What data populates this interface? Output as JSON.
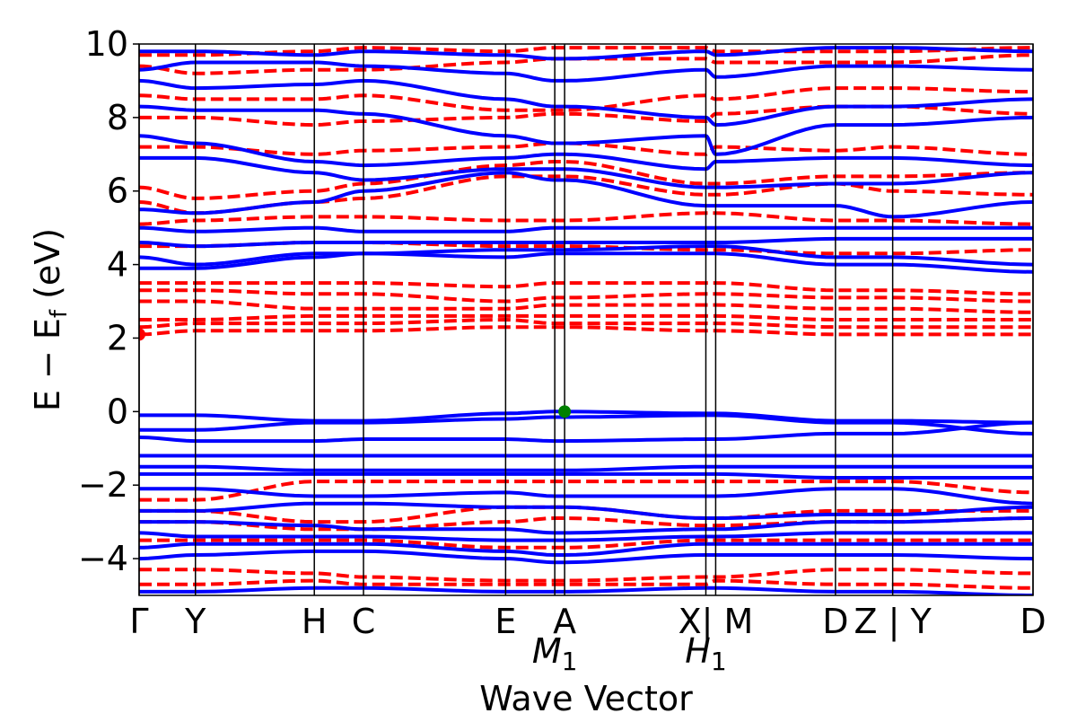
{
  "chart_data": {
    "type": "line",
    "title": "",
    "xlabel": "Wave Vector",
    "ylabel": "E − E_f (eV)",
    "ylabel_main": "E − E",
    "ylabel_sub": "f",
    "ylabel_unit": " (eV)",
    "ylim": [
      -5,
      10
    ],
    "yticks": [
      -4,
      -2,
      0,
      2,
      4,
      6,
      8,
      10
    ],
    "ytick_labels": [
      "−4",
      "−2",
      "0",
      "2",
      "4",
      "6",
      "8",
      "10"
    ],
    "xlim": [
      0,
      1
    ],
    "kpoints": [
      {
        "label": "Γ",
        "x": 0.0
      },
      {
        "label": "Y",
        "x": 0.063
      },
      {
        "label": "H",
        "x": 0.196
      },
      {
        "label": "C",
        "x": 0.251
      },
      {
        "label": "E",
        "x": 0.41
      },
      {
        "label": "M",
        "sub": "1",
        "italic": true,
        "x": 0.465
      },
      {
        "label": "A",
        "x": 0.476
      },
      {
        "label": "H",
        "sub": "1",
        "italic": true,
        "x": 0.634
      },
      {
        "label": "X| M",
        "x": 0.645
      },
      {
        "label": "D",
        "x": 0.779
      },
      {
        "label": "Z | Y",
        "x": 0.843
      },
      {
        "label": "D",
        "x": 1.0
      }
    ],
    "series": [
      {
        "spin": "up",
        "color": "#0000ff",
        "style": "solid",
        "bands": [
          [
            -0.1,
            -0.1,
            -0.25,
            -0.25,
            -0.05,
            0,
            0,
            -0.05,
            -0.05,
            -0.25,
            -0.25,
            -0.3
          ],
          [
            -0.5,
            -0.5,
            -0.3,
            -0.3,
            -0.2,
            -0.15,
            -0.15,
            -0.1,
            -0.1,
            -0.3,
            -0.3,
            -0.6
          ],
          [
            -0.7,
            -0.8,
            -0.8,
            -0.75,
            -0.75,
            -0.8,
            -0.8,
            -0.75,
            -0.75,
            -0.6,
            -0.6,
            -0.3
          ],
          [
            -1.2,
            -1.2,
            -1.2,
            -1.2,
            -1.2,
            -1.2,
            -1.2,
            -1.2,
            -1.2,
            -1.2,
            -1.2,
            -1.2
          ],
          [
            -1.5,
            -1.5,
            -1.6,
            -1.6,
            -1.6,
            -1.6,
            -1.6,
            -1.5,
            -1.5,
            -1.5,
            -1.5,
            -1.5
          ],
          [
            -1.7,
            -1.7,
            -1.7,
            -1.7,
            -1.7,
            -1.7,
            -1.7,
            -1.7,
            -1.7,
            -1.8,
            -1.8,
            -1.8
          ],
          [
            -2.1,
            -2.1,
            -2.3,
            -2.3,
            -2.2,
            -2.3,
            -2.3,
            -2.3,
            -2.3,
            -2.1,
            -2.1,
            -2.5
          ],
          [
            -2.7,
            -2.7,
            -2.5,
            -2.5,
            -2.6,
            -2.6,
            -2.6,
            -2.9,
            -2.9,
            -2.8,
            -2.8,
            -2.6
          ],
          [
            -3.0,
            -3.0,
            -3.1,
            -3.2,
            -3.2,
            -3.3,
            -3.3,
            -3.2,
            -3.2,
            -3.0,
            -3.0,
            -2.9
          ],
          [
            -3.3,
            -3.4,
            -3.4,
            -3.4,
            -3.5,
            -3.5,
            -3.5,
            -3.4,
            -3.4,
            -3.3,
            -3.3,
            -3.3
          ],
          [
            -3.7,
            -3.6,
            -3.6,
            -3.6,
            -3.8,
            -3.9,
            -3.9,
            -3.6,
            -3.6,
            -3.6,
            -3.6,
            -3.6
          ],
          [
            -4.0,
            -3.9,
            -3.8,
            -3.8,
            -4.0,
            -4.1,
            -4.1,
            -3.9,
            -3.9,
            -3.9,
            -3.9,
            -4.0
          ],
          [
            -4.9,
            -4.9,
            -4.8,
            -4.8,
            -4.9,
            -4.9,
            -4.9,
            -4.8,
            -4.8,
            -4.9,
            -4.9,
            -5.0
          ],
          [
            3.9,
            3.9,
            4.2,
            4.3,
            4.2,
            4.3,
            4.3,
            4.3,
            4.3,
            4.0,
            4.0,
            3.8
          ],
          [
            4.2,
            4.0,
            4.3,
            4.3,
            4.4,
            4.4,
            4.4,
            4.5,
            4.5,
            4.2,
            4.2,
            4.0
          ],
          [
            4.6,
            4.5,
            4.6,
            4.6,
            4.6,
            4.6,
            4.6,
            4.6,
            4.6,
            4.7,
            4.7,
            4.7
          ],
          [
            5.0,
            4.9,
            5.0,
            4.9,
            4.9,
            5.0,
            5.0,
            5.0,
            5.0,
            5.0,
            5.0,
            5.0
          ],
          [
            5.5,
            5.4,
            5.7,
            6.0,
            6.5,
            6.3,
            6.3,
            5.6,
            5.6,
            5.6,
            5.3,
            5.7
          ],
          [
            6.9,
            6.9,
            6.5,
            6.3,
            6.6,
            6.6,
            6.6,
            6.1,
            6.1,
            6.2,
            6.2,
            6.5
          ],
          [
            7.5,
            7.3,
            6.8,
            6.7,
            6.9,
            7.0,
            7.0,
            6.6,
            6.8,
            6.9,
            6.9,
            6.7
          ],
          [
            8.3,
            8.2,
            8.2,
            8.1,
            7.5,
            7.3,
            7.3,
            7.5,
            7.0,
            7.8,
            7.8,
            8.0
          ],
          [
            9.0,
            8.8,
            8.9,
            9.0,
            8.5,
            8.3,
            8.3,
            8.0,
            7.8,
            8.3,
            8.3,
            8.5
          ],
          [
            9.3,
            9.5,
            9.5,
            9.4,
            9.2,
            9.0,
            9.0,
            9.3,
            9.1,
            9.4,
            9.4,
            9.3
          ],
          [
            9.8,
            9.8,
            9.7,
            9.8,
            9.7,
            9.6,
            9.6,
            9.8,
            9.7,
            9.9,
            9.9,
            9.8
          ]
        ]
      },
      {
        "spin": "down",
        "color": "#ff0000",
        "style": "dashed",
        "bands": [
          [
            -2.4,
            -2.4,
            -1.9,
            -1.9,
            -1.9,
            -1.9,
            -1.9,
            -1.9,
            -1.9,
            -1.9,
            -1.9,
            -2.2
          ],
          [
            -2.7,
            -2.7,
            -3.0,
            -3.0,
            -2.6,
            -2.6,
            -2.6,
            -2.9,
            -2.9,
            -2.7,
            -2.7,
            -2.7
          ],
          [
            -3.0,
            -3.0,
            -3.2,
            -3.2,
            -3.0,
            -2.9,
            -2.9,
            -3.1,
            -3.1,
            -3.0,
            -3.0,
            -2.9
          ],
          [
            -3.5,
            -3.5,
            -3.5,
            -3.5,
            -3.7,
            -3.7,
            -3.7,
            -3.5,
            -3.5,
            -3.5,
            -3.5,
            -3.5
          ],
          [
            -4.3,
            -4.3,
            -4.4,
            -4.5,
            -4.6,
            -4.6,
            -4.6,
            -4.5,
            -4.5,
            -4.3,
            -4.3,
            -4.4
          ],
          [
            -4.7,
            -4.7,
            -4.6,
            -4.7,
            -4.7,
            -4.7,
            -4.7,
            -4.7,
            -4.6,
            -4.7,
            -4.7,
            -4.8
          ],
          [
            2.1,
            2.2,
            2.2,
            2.2,
            2.3,
            2.3,
            2.3,
            2.2,
            2.2,
            2.1,
            2.1,
            2.1
          ],
          [
            2.3,
            2.4,
            2.4,
            2.4,
            2.5,
            2.4,
            2.4,
            2.4,
            2.4,
            2.3,
            2.3,
            2.3
          ],
          [
            2.5,
            2.5,
            2.6,
            2.6,
            2.6,
            2.6,
            2.6,
            2.6,
            2.6,
            2.5,
            2.5,
            2.5
          ],
          [
            3.0,
            3.0,
            2.8,
            2.8,
            2.8,
            2.9,
            2.9,
            2.9,
            2.9,
            2.8,
            2.8,
            2.7
          ],
          [
            3.3,
            3.3,
            3.2,
            3.2,
            3.0,
            3.1,
            3.1,
            3.2,
            3.2,
            3.1,
            3.1,
            3.0
          ],
          [
            3.5,
            3.5,
            3.5,
            3.5,
            3.4,
            3.5,
            3.5,
            3.5,
            3.5,
            3.3,
            3.3,
            3.2
          ],
          [
            4.5,
            4.5,
            4.6,
            4.6,
            4.5,
            4.5,
            4.5,
            4.4,
            4.4,
            4.3,
            4.3,
            4.4
          ],
          [
            5.1,
            5.2,
            5.3,
            5.3,
            5.2,
            5.2,
            5.2,
            5.4,
            5.4,
            5.2,
            5.2,
            5.1
          ],
          [
            5.7,
            5.4,
            5.7,
            5.8,
            6.4,
            6.4,
            6.4,
            5.9,
            5.9,
            6.2,
            6.0,
            5.9
          ],
          [
            6.1,
            5.8,
            6.0,
            6.2,
            6.7,
            6.8,
            6.8,
            6.2,
            6.2,
            6.4,
            6.4,
            6.5
          ],
          [
            7.2,
            7.2,
            7.0,
            7.1,
            7.2,
            7.3,
            7.3,
            7.0,
            7.2,
            7.1,
            7.2,
            7.0
          ],
          [
            8.0,
            8.0,
            7.8,
            7.9,
            8.0,
            8.1,
            8.1,
            7.9,
            8.1,
            8.3,
            8.3,
            8.1
          ],
          [
            8.6,
            8.5,
            8.5,
            8.6,
            8.2,
            8.2,
            8.2,
            8.6,
            8.5,
            8.8,
            8.8,
            8.7
          ],
          [
            9.4,
            9.2,
            9.3,
            9.3,
            9.5,
            9.6,
            9.6,
            9.6,
            9.5,
            9.5,
            9.5,
            9.7
          ],
          [
            9.7,
            9.7,
            9.8,
            9.9,
            9.8,
            9.9,
            9.9,
            9.9,
            9.8,
            9.8,
            9.8,
            9.9
          ]
        ]
      }
    ],
    "markers": [
      {
        "name": "cbm",
        "x": 0.0,
        "y": 2.1,
        "color": "#ff0000"
      },
      {
        "name": "vbm",
        "x": 0.476,
        "y": 0.0,
        "color": "#008000"
      }
    ],
    "grid": false,
    "legend": "none"
  }
}
